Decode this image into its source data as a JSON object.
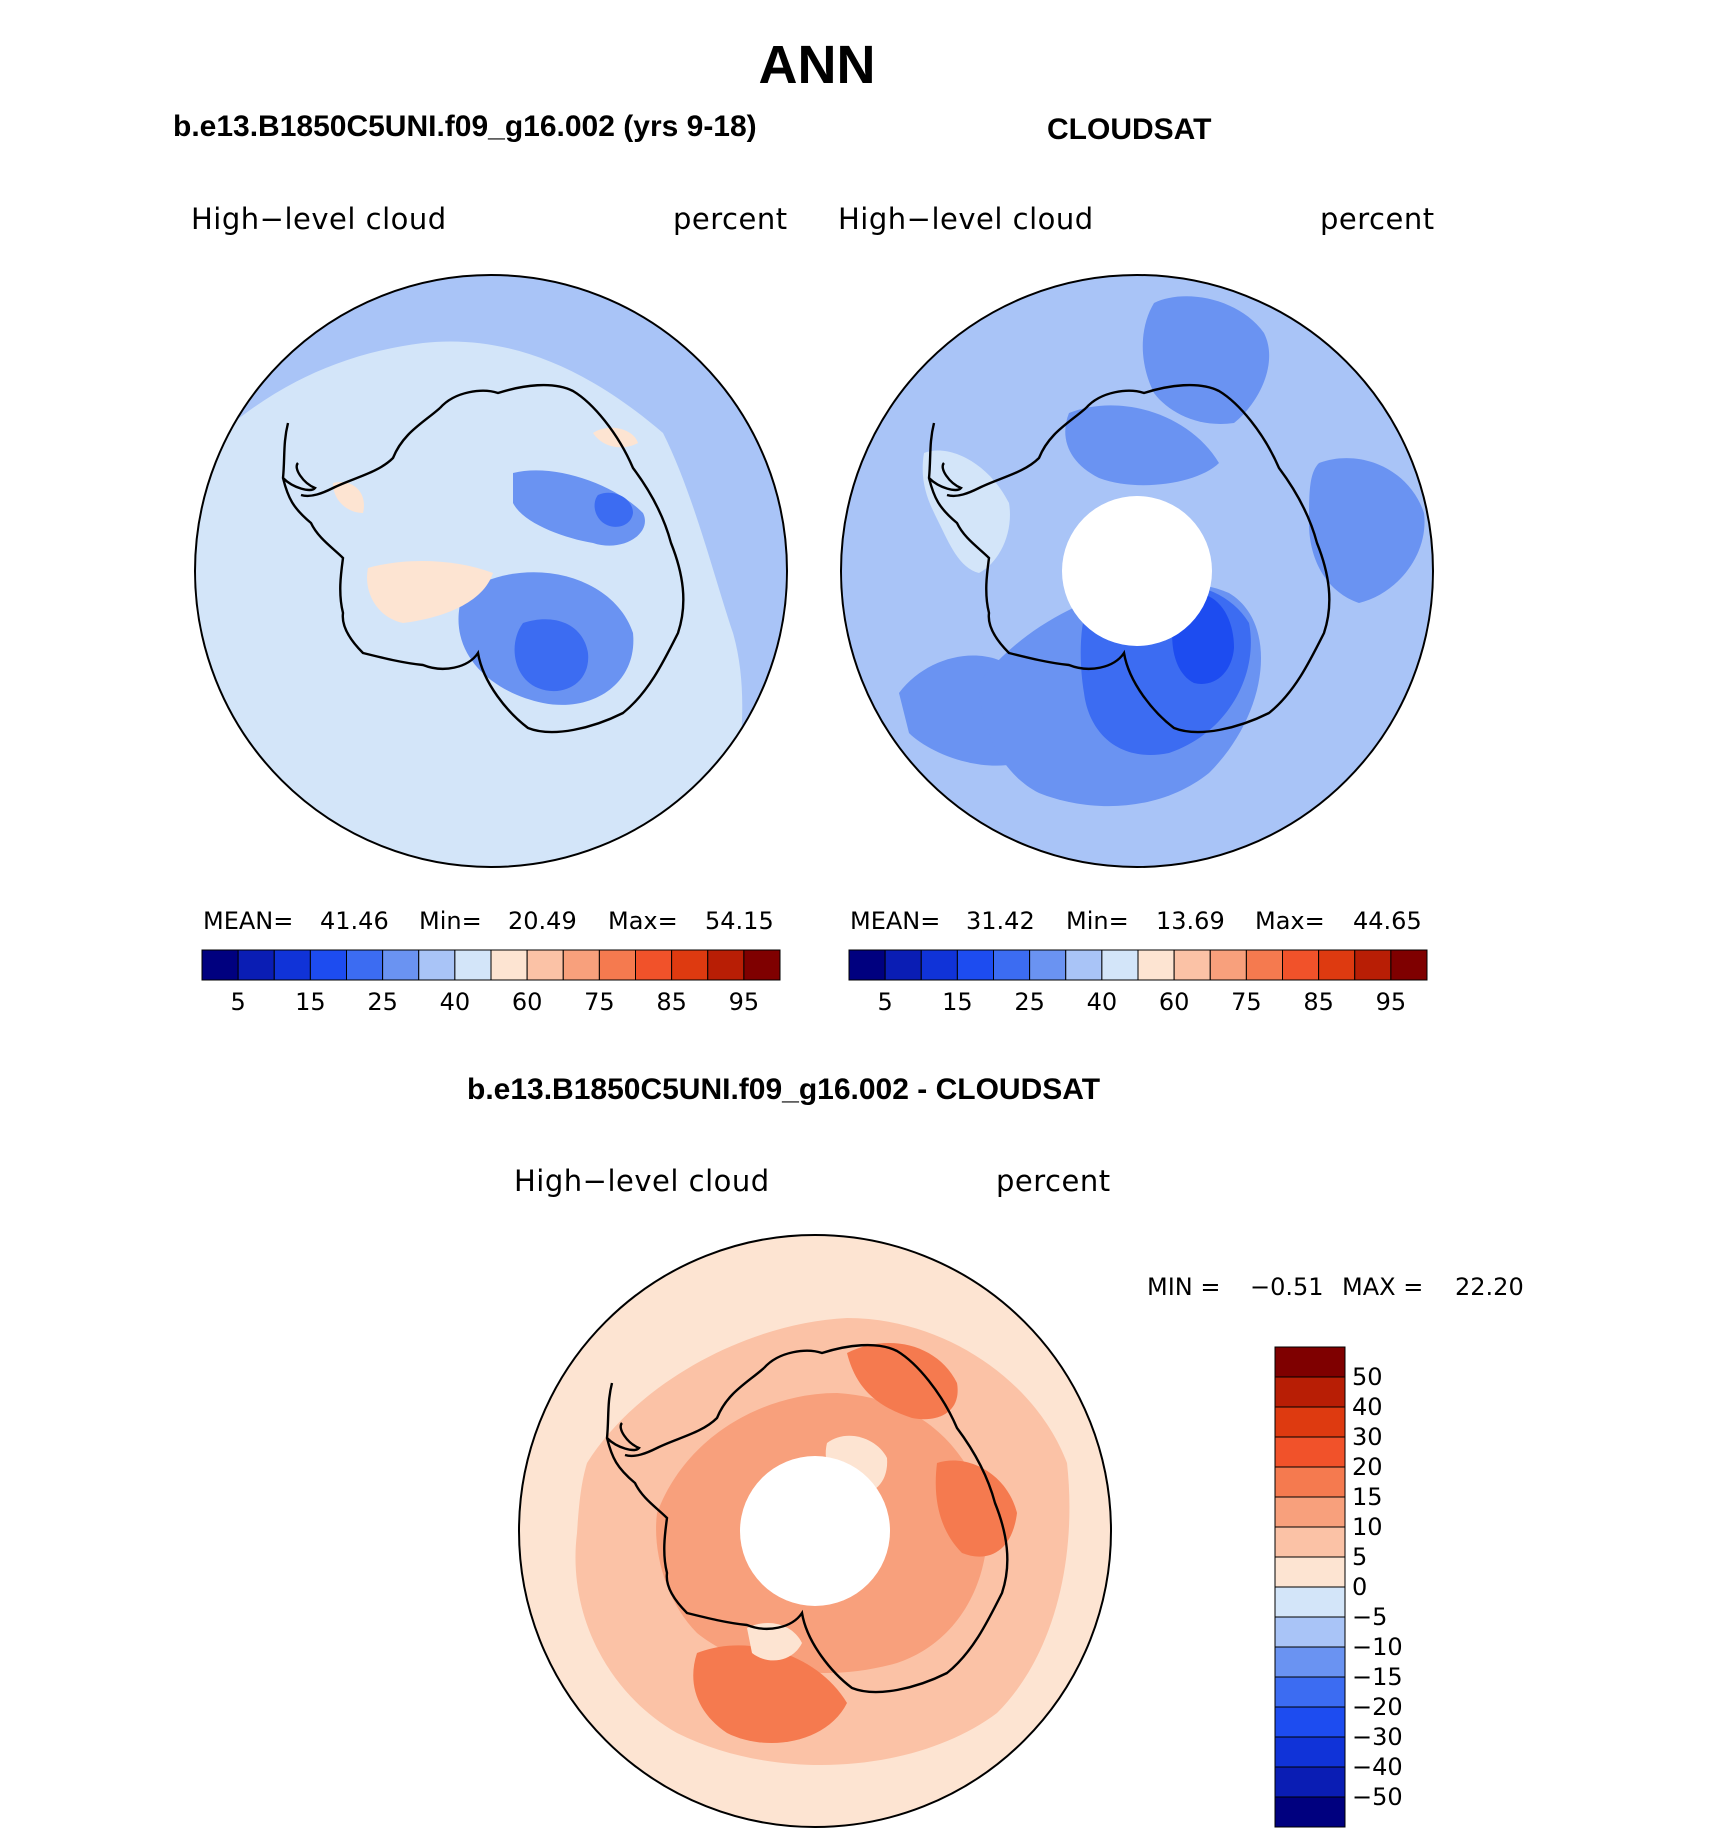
{
  "header": {
    "title": "ANN"
  },
  "panels": {
    "model": {
      "title": "b.e13.B1850C5UNI.f09_g16.002 (yrs 9-18)",
      "variable": "High−level cloud",
      "units": "percent",
      "mean_label": "MEAN=",
      "mean": "41.46",
      "min_label": "Min=",
      "min": "20.49",
      "max_label": "Max=",
      "max": "54.15"
    },
    "obs": {
      "title": "CLOUDSAT",
      "variable": "High−level cloud",
      "units": "percent",
      "mean_label": "MEAN=",
      "mean": "31.42",
      "min_label": "Min=",
      "min": "13.69",
      "max_label": "Max=",
      "max": "44.65"
    },
    "diff": {
      "title": "b.e13.B1850C5UNI.f09_g16.002 - CLOUDSAT",
      "variable": "High−level cloud",
      "units": "percent",
      "min_label": "MIN =",
      "min": "−0.51",
      "max_label": "MAX =",
      "max": "22.20"
    }
  },
  "colorbars": {
    "abs": {
      "colors": [
        "#00007f",
        "#0a1db4",
        "#1033d8",
        "#1d4cf0",
        "#3c6cf2",
        "#6a93f2",
        "#a9c4f7",
        "#d3e5f9",
        "#fde4d2",
        "#fbc2a6",
        "#f8a07c",
        "#f57a4f",
        "#f1522a",
        "#de3a10",
        "#b81e05",
        "#7f0000"
      ],
      "tick_labels": [
        "5",
        "15",
        "25",
        "40",
        "60",
        "75",
        "85",
        "95"
      ]
    },
    "diff": {
      "colors_top_to_bottom": [
        "#7f0000",
        "#b81e05",
        "#de3a10",
        "#f1522a",
        "#f57a4f",
        "#f8a07c",
        "#fbc2a6",
        "#fde4d2",
        "#d3e5f9",
        "#a9c4f7",
        "#6a93f2",
        "#3c6cf2",
        "#1d4cf0",
        "#1033d8",
        "#0a1db4",
        "#00007f"
      ],
      "tick_labels": [
        "50",
        "40",
        "30",
        "20",
        "15",
        "10",
        "5",
        "0",
        "−5",
        "−10",
        "−15",
        "−20",
        "−30",
        "−40",
        "−50"
      ]
    }
  },
  "maps": {
    "model": {
      "base": "#d3e5f9",
      "rim": "#a9c4f7",
      "mid": "#6a93f2",
      "deep": "#3c6cf2",
      "warm": "#fde4d2"
    },
    "obs": {
      "base": "#a9c4f7",
      "mid": "#6a93f2",
      "deep": "#3c6cf2",
      "deeper": "#1d4cf0",
      "light": "#d3e5f9",
      "hole": "#ffffff"
    },
    "diff": {
      "base": "#fbc2a6",
      "mid": "#f8a07c",
      "deep": "#f57a4f",
      "light": "#fde4d2",
      "hole": "#ffffff"
    }
  }
}
